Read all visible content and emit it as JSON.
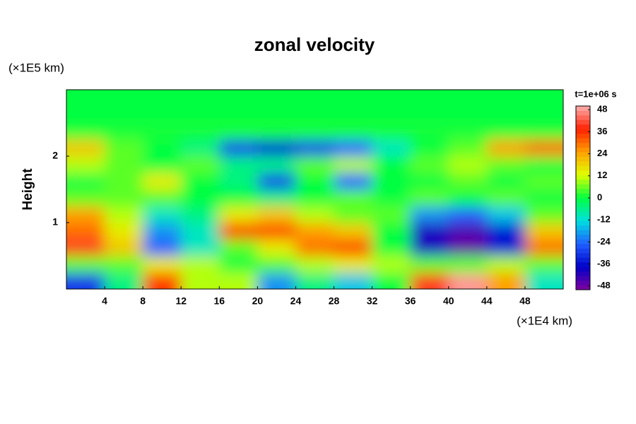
{
  "chart_data": {
    "type": "heatmap",
    "title": "zonal velocity",
    "ylabel": "Height",
    "y_unit": "(×1E5 km)",
    "x_unit": "(×1E4 km)",
    "time_label": "t=1e+06 s",
    "xbins": [
      0,
      4,
      8,
      12,
      16,
      20,
      24,
      28,
      32,
      36,
      40,
      44,
      48,
      52
    ],
    "ybins": [
      0,
      0.25,
      0.5,
      0.75,
      1,
      1.25,
      1.5,
      1.75,
      2,
      2.25,
      2.5,
      2.75,
      3
    ],
    "z": [
      [
        -30,
        -5,
        35,
        10,
        10,
        -20,
        -5,
        -15,
        0,
        40,
        48,
        25,
        -10
      ],
      [
        5,
        5,
        15,
        10,
        0,
        5,
        10,
        15,
        10,
        5,
        5,
        10,
        5
      ],
      [
        40,
        20,
        -25,
        -10,
        5,
        15,
        30,
        35,
        0,
        -40,
        -48,
        -35,
        30
      ],
      [
        30,
        15,
        -20,
        -10,
        35,
        35,
        25,
        20,
        0,
        -40,
        -45,
        -35,
        20
      ],
      [
        25,
        10,
        -10,
        -5,
        15,
        20,
        10,
        5,
        5,
        -20,
        -25,
        -15,
        5
      ],
      [
        5,
        5,
        5,
        0,
        0,
        -5,
        0,
        5,
        0,
        5,
        0,
        5,
        0
      ],
      [
        0,
        5,
        15,
        0,
        -5,
        -30,
        0,
        -25,
        0,
        0,
        5,
        0,
        5
      ],
      [
        10,
        5,
        0,
        5,
        -5,
        -5,
        5,
        10,
        0,
        5,
        10,
        5,
        0
      ],
      [
        20,
        5,
        0,
        -5,
        -30,
        -35,
        -30,
        -25,
        -10,
        0,
        5,
        25,
        30
      ],
      [
        1,
        1,
        1,
        1,
        1,
        1,
        1,
        1,
        1,
        1,
        1,
        1,
        1
      ],
      [
        0,
        0,
        0,
        0,
        0,
        0,
        0,
        0,
        0,
        0,
        0,
        0,
        0
      ],
      [
        0,
        0,
        0,
        0,
        0,
        0,
        0,
        0,
        0,
        0,
        0,
        0,
        0
      ]
    ],
    "xlim": [
      0,
      52
    ],
    "xticks": [
      4,
      8,
      12,
      16,
      20,
      24,
      28,
      32,
      36,
      40,
      44,
      48
    ],
    "ylim": [
      0,
      3
    ],
    "yticks": [
      1,
      2
    ],
    "clim": [
      -50,
      50
    ],
    "cticks": [
      48,
      36,
      24,
      12,
      0,
      -12,
      -24,
      -36,
      -48
    ],
    "colormap": [
      "#8000a0",
      "#0000c8",
      "#2060ff",
      "#00e0e0",
      "#00ff40",
      "#e0ff00",
      "#ffa000",
      "#ff2000",
      "#ffb0b0"
    ]
  }
}
